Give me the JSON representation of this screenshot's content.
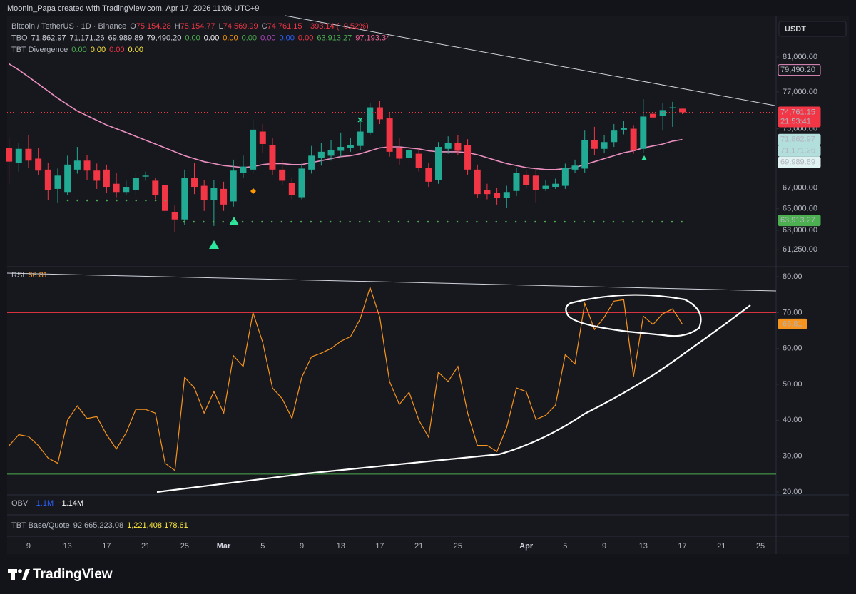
{
  "header": {
    "credit": "Moonin_Papa created with TradingView.com, Apr 17, 2026 11:06 UTC+9",
    "legend": [
      {
        "name": "Bitcoin / TetherUS · 1D · Binance",
        "items": [
          {
            "text": "O",
            "color": "#b2b5be"
          },
          {
            "text": "75,154.28",
            "color": "#f23645"
          },
          {
            "text": "H",
            "color": "#b2b5be"
          },
          {
            "text": "75,154.77",
            "color": "#f23645"
          },
          {
            "text": "L",
            "color": "#b2b5be"
          },
          {
            "text": "74,569.99",
            "color": "#f23645"
          },
          {
            "text": "C",
            "color": "#b2b5be"
          },
          {
            "text": "74,761.15",
            "color": "#f23645"
          },
          {
            "text": "−393.14 (−0.52%)",
            "color": "#f23645"
          }
        ]
      },
      {
        "name": "TBO",
        "items": [
          {
            "text": "71,862.97",
            "color": "#d1d4dc"
          },
          {
            "text": "71,171.26",
            "color": "#d1d4dc"
          },
          {
            "text": "69,989.89",
            "color": "#d1d4dc"
          },
          {
            "text": "79,490.20",
            "color": "#d1d4dc"
          },
          {
            "text": "0.00",
            "color": "#4caf50"
          },
          {
            "text": "0.00",
            "color": "#ffffff"
          },
          {
            "text": "0.00",
            "color": "#ff9800"
          },
          {
            "text": "0.00",
            "color": "#4caf50"
          },
          {
            "text": "0.00",
            "color": "#ab47bc"
          },
          {
            "text": "0.00",
            "color": "#2962ff"
          },
          {
            "text": "0.00",
            "color": "#f23645"
          },
          {
            "text": "63,913.27",
            "color": "#4caf50"
          },
          {
            "text": "97,193.34",
            "color": "#f06292"
          }
        ]
      },
      {
        "name": "TBT Divergence",
        "items": [
          {
            "text": "0.00",
            "color": "#4caf50"
          },
          {
            "text": "0.00",
            "color": "#ffeb3b"
          },
          {
            "text": "0.00",
            "color": "#f23645"
          },
          {
            "text": "0.00",
            "color": "#ffeb3b"
          }
        ]
      }
    ],
    "lower_panes": [
      {
        "name": "OBV",
        "items": [
          {
            "text": "−1.1M",
            "color": "#2962ff"
          },
          {
            "text": "−1.14M",
            "color": "#ffffff"
          }
        ]
      },
      {
        "name": "TBT Base/Quote",
        "items": [
          {
            "text": "92,665,223.08",
            "color": "#b2b5be"
          },
          {
            "text": "1,221,408,178.61",
            "color": "#ffeb3b"
          }
        ]
      }
    ],
    "currency": "USDT",
    "brand": "TradingView"
  },
  "chart_data": [
    {
      "type": "candlestick",
      "categories": [
        null,
        null,
        "9",
        null,
        null,
        null,
        "13",
        null,
        null,
        null,
        "17",
        null,
        null,
        null,
        "21",
        null,
        null,
        null,
        "25",
        null,
        null,
        null,
        "Mar",
        null,
        null,
        null,
        "5",
        null,
        null,
        null,
        "9",
        null,
        null,
        null,
        "13",
        null,
        null,
        null,
        "17",
        null,
        null,
        null,
        "21",
        null,
        null,
        null,
        "25",
        null,
        null,
        null,
        null,
        null,
        null,
        "Apr",
        null,
        null,
        null,
        "5",
        null,
        null,
        null,
        "9",
        null,
        null,
        null,
        "13",
        null,
        null,
        null,
        "17",
        null,
        null,
        null,
        "21",
        null,
        null,
        null,
        "25"
      ],
      "open": [
        71000,
        69500,
        70900,
        69900,
        68800,
        66900,
        66600,
        68800,
        69700,
        68700,
        68800,
        67400,
        66600,
        66800,
        68100,
        67700,
        67300,
        64700,
        64000,
        68000,
        67200,
        65800,
        66900,
        65700,
        68500,
        68800,
        72700,
        71300,
        68800,
        67500,
        66100,
        68800,
        70000,
        70200,
        70700,
        71000,
        71200,
        72600,
        75300,
        74100,
        71000,
        70000,
        70400,
        69000,
        67800,
        70900,
        71500,
        71300,
        68800,
        66800,
        66500,
        66000,
        66700,
        68300,
        68200,
        66900,
        67100,
        67200,
        68800,
        68900,
        71800,
        70900,
        71600,
        72900,
        73000,
        70900,
        74600,
        74400,
        75200,
        75154.28,
        null,
        null,
        null,
        null,
        null,
        null,
        null,
        null
      ],
      "high": [
        72000,
        71500,
        72300,
        71000,
        69500,
        68900,
        70200,
        71100,
        70300,
        69400,
        69300,
        68500,
        67700,
        68500,
        68600,
        68000,
        67800,
        65300,
        68800,
        69500,
        67800,
        67800,
        67600,
        69800,
        70200,
        74000,
        73500,
        72000,
        69800,
        68000,
        69400,
        71200,
        71500,
        71800,
        72600,
        72000,
        73800,
        75800,
        76000,
        74700,
        72000,
        71600,
        71000,
        69500,
        71600,
        72200,
        72300,
        71900,
        69300,
        67400,
        67000,
        67200,
        69000,
        68800,
        69000,
        67800,
        67900,
        69400,
        69800,
        72800,
        73200,
        72300,
        73500,
        73800,
        73400,
        76200,
        75000,
        75800,
        75900,
        75154.77,
        null,
        null,
        null,
        null,
        null,
        null,
        null,
        null
      ],
      "low": [
        67400,
        68600,
        69000,
        68300,
        65800,
        65600,
        66300,
        68400,
        67800,
        66900,
        66500,
        66100,
        66300,
        66300,
        67700,
        65900,
        64200,
        62800,
        63500,
        66400,
        64800,
        63400,
        64800,
        65200,
        68000,
        68400,
        70500,
        68300,
        67300,
        65900,
        65900,
        68400,
        69200,
        69700,
        70100,
        70600,
        70800,
        72300,
        73500,
        70100,
        69300,
        69500,
        68600,
        67100,
        67400,
        70400,
        70300,
        68300,
        66000,
        65900,
        65400,
        65100,
        66200,
        66900,
        65600,
        66700,
        66900,
        66900,
        68500,
        68500,
        70300,
        70500,
        71100,
        72400,
        70400,
        70500,
        73500,
        72800,
        73200,
        74569.99,
        null,
        null,
        null,
        null,
        null,
        null,
        null,
        null
      ],
      "close": [
        69600,
        70900,
        69700,
        68700,
        66800,
        68200,
        69300,
        69700,
        68700,
        67700,
        67100,
        66600,
        67100,
        68000,
        68200,
        66300,
        64800,
        64000,
        68000,
        67100,
        65800,
        67000,
        65400,
        68700,
        69100,
        72900,
        71400,
        68800,
        67700,
        66300,
        68900,
        70200,
        70600,
        70800,
        71100,
        71300,
        72700,
        75300,
        74000,
        70600,
        69900,
        70800,
        69000,
        67600,
        71100,
        71500,
        70700,
        68800,
        66400,
        66400,
        66000,
        66600,
        68500,
        67300,
        66800,
        67200,
        67400,
        69000,
        69200,
        71800,
        70900,
        71600,
        72800,
        73100,
        70800,
        74300,
        74200,
        75000,
        75300,
        74761.15,
        null,
        null,
        null,
        null,
        null,
        null,
        null,
        null
      ],
      "up_color": "#22ab94",
      "down_color": "#f23645",
      "series": [
        {
          "name": "TBO",
          "color": "#ea8fc0",
          "values": [
            80200,
            79500,
            78700,
            77900,
            77100,
            76300,
            75600,
            74900,
            74400,
            73900,
            73400,
            73000,
            72600,
            72200,
            71800,
            71400,
            71000,
            70600,
            70200,
            69900,
            69600,
            69400,
            69200,
            69100,
            69000,
            69100,
            69300,
            69400,
            69400,
            69300,
            69300,
            69500,
            69700,
            69900,
            70100,
            70200,
            70400,
            70700,
            71000,
            71100,
            71100,
            71000,
            70900,
            70700,
            70600,
            70600,
            70600,
            70500,
            70300,
            70000,
            69700,
            69400,
            69200,
            69000,
            68900,
            68800,
            68800,
            68900,
            69000,
            69300,
            69600,
            69900,
            70200,
            70500,
            70700,
            71000,
            71200,
            71400,
            71700,
            71862.97,
            null,
            null,
            null,
            null,
            null,
            null,
            null,
            null
          ]
        }
      ],
      "log_scale": true,
      "ylim": [
        60010,
        84420
      ],
      "yticks": [
        {
          "value": 61250,
          "label": "61,250.00"
        },
        {
          "value": 63000,
          "label": "63,000.00"
        },
        {
          "value": 65000,
          "label": "65,000.00"
        },
        {
          "value": 67000,
          "label": "67,000.00"
        },
        {
          "value": 73000,
          "label": "73,000.00"
        },
        {
          "value": 77000,
          "label": "77,000.00"
        },
        {
          "value": 81000,
          "label": "81,000.00"
        }
      ],
      "price_labels": [
        {
          "value": 79490.2,
          "label": "79,490.20",
          "color": "#ea8fc0",
          "outline": true
        },
        {
          "value": 74761.15,
          "label": "74,761.15",
          "color": "#f23645",
          "countdown": "21:53:41",
          "price_line": true
        },
        {
          "value": 71862.97,
          "label": "71,862.97",
          "color": "#b2dfdb"
        },
        {
          "value": 71171.26,
          "label": "71,171.26",
          "color": "#b2dfdb"
        },
        {
          "value": 69989.89,
          "label": "69,989.89",
          "color": "#e0f2f1"
        },
        {
          "value": 63913.27,
          "label": "63,913.27",
          "color": "#4caf50"
        }
      ]
    },
    {
      "type": "line",
      "title": "RSI",
      "series": [
        {
          "name": "RSI",
          "color": "#f7941d",
          "values": [
            32.9,
            36,
            35.5,
            33,
            29.5,
            28,
            40,
            44,
            40.5,
            41,
            36,
            32,
            36.5,
            43,
            43,
            42,
            28,
            26,
            52,
            49,
            42,
            48,
            42,
            58,
            55,
            70,
            61.7,
            49,
            46,
            40.5,
            52,
            57.7,
            58.7,
            60,
            62,
            63.3,
            68.3,
            77,
            68.7,
            50.8,
            44.4,
            47.8,
            40,
            35.3,
            53.4,
            50.8,
            55,
            42,
            33,
            33,
            31.3,
            38,
            49,
            48,
            40.2,
            41.4,
            44.2,
            58.3,
            55.7,
            72.6,
            65.3,
            68.7,
            73.2,
            73.6,
            52.2,
            69,
            66.7,
            69.7,
            71,
            66.81,
            null,
            null,
            null,
            null,
            null,
            null,
            null,
            null
          ]
        }
      ],
      "ylim": [
        19.6,
        81.6
      ],
      "yticks": [
        {
          "value": 20,
          "label": "20.00"
        },
        {
          "value": 30,
          "label": "30.00"
        },
        {
          "value": 40,
          "label": "40.00"
        },
        {
          "value": 50,
          "label": "50.00"
        },
        {
          "value": 60,
          "label": "60.00"
        },
        {
          "value": 70,
          "label": "70.00"
        },
        {
          "value": 80,
          "label": "80.00"
        }
      ],
      "hlines": [
        {
          "value": 70,
          "color": "#f23645"
        },
        {
          "value": 25,
          "color": "#4caf50"
        }
      ]
    }
  ]
}
